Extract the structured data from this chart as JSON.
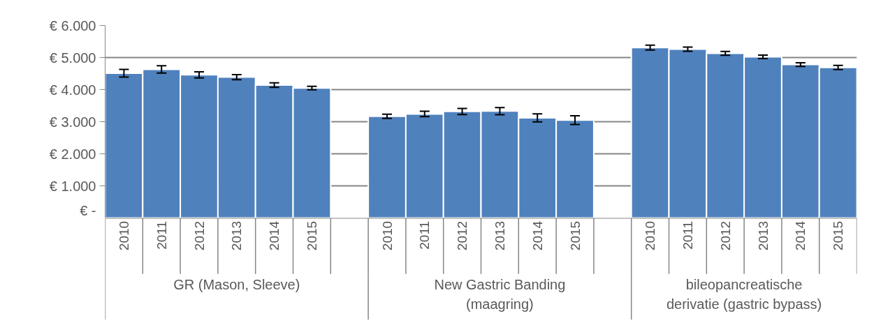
{
  "chart_data": {
    "type": "bar",
    "categories": [
      "2010",
      "2011",
      "2012",
      "2013",
      "2014",
      "2015",
      null,
      "2010",
      "2011",
      "2012",
      "2013",
      "2014",
      "2015",
      null,
      "2010",
      "2011",
      "2012",
      "2013",
      "2014",
      "2015"
    ],
    "series": [
      {
        "color": "#4f81bd",
        "values": [
          4510,
          4630,
          4460,
          4390,
          4140,
          4050,
          null,
          3170,
          3240,
          3320,
          3330,
          3120,
          3050,
          null,
          5310,
          5260,
          5130,
          5020,
          4780,
          4690
        ],
        "errors": [
          120,
          115,
          95,
          80,
          70,
          55,
          null,
          65,
          85,
          95,
          110,
          125,
          135,
          null,
          75,
          65,
          60,
          55,
          55,
          65
        ]
      }
    ],
    "ylim": [
      0,
      6000
    ],
    "yticks": [
      {
        "value": 0,
        "label": "€ -"
      },
      {
        "value": 1000,
        "label": "€ 1.000"
      },
      {
        "value": 2000,
        "label": "€ 2.000"
      },
      {
        "value": 3000,
        "label": "€ 3.000"
      },
      {
        "value": 4000,
        "label": "€ 4.000"
      },
      {
        "value": 5000,
        "label": "€ 5.000"
      },
      {
        "value": 6000,
        "label": "€ 6.000"
      }
    ],
    "grid": "y",
    "annotations": [
      "GR (Mason, Sleeve)",
      "New Gastric Banding (maagring)",
      "bileopancreatische derivatie (gastric bypass)"
    ]
  }
}
